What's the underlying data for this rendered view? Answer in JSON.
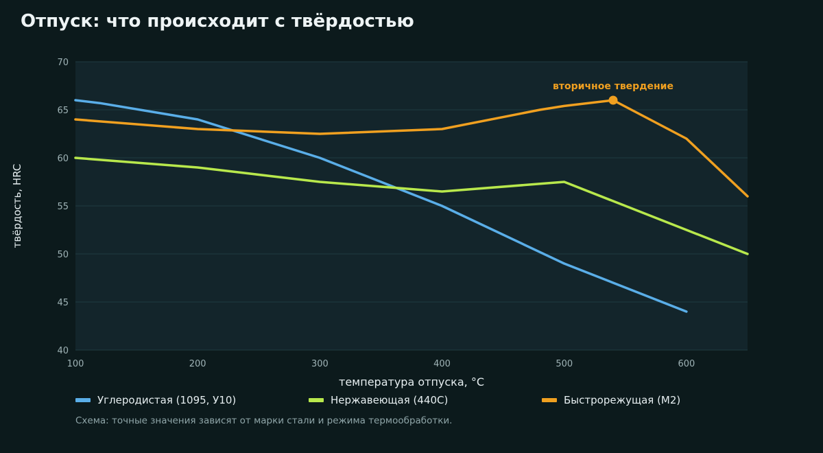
{
  "page": {
    "title": "Отпуск: что происходит с твёрдостью",
    "note": "Схема: точные значения зависят от марки стали и режима термообработки."
  },
  "chart_data": {
    "type": "line",
    "xlabel": "температура отпуска, °C",
    "ylabel": "твёрдость, HRC",
    "xlim": [
      100,
      650
    ],
    "ylim": [
      40,
      70
    ],
    "xticks": [
      100,
      200,
      300,
      400,
      500,
      600
    ],
    "yticks": [
      40,
      45,
      50,
      55,
      60,
      65,
      70
    ],
    "grid": "horizontal",
    "legend_position": "bottom",
    "background_color": "#0c1a1c",
    "plot_area_color": "#13252b",
    "series": [
      {
        "name": "Углеродистая (1095, У10)",
        "color": "#5aaee8",
        "x": [
          100,
          120,
          200,
          300,
          360,
          400,
          500,
          540,
          600
        ],
        "y": [
          66,
          65.7,
          64,
          60,
          57,
          55,
          49,
          47,
          44
        ]
      },
      {
        "name": "Нержавеющая (440C)",
        "color": "#b8e84c",
        "x": [
          100,
          200,
          300,
          360,
          400,
          500,
          600,
          650
        ],
        "y": [
          60,
          59,
          57.5,
          56.9,
          56.5,
          57.5,
          52.5,
          50
        ]
      },
      {
        "name": "Быстрорежущая (M2)",
        "color": "#f0a020",
        "x": [
          100,
          200,
          300,
          400,
          480,
          500,
          540,
          600,
          650
        ],
        "y": [
          64,
          63,
          62.5,
          63,
          65,
          65.4,
          66,
          62,
          56
        ]
      }
    ],
    "annotations": [
      {
        "text": "вторичное твердение",
        "x": 540,
        "y": 66,
        "series": 2,
        "color": "#f0a020"
      }
    ]
  }
}
